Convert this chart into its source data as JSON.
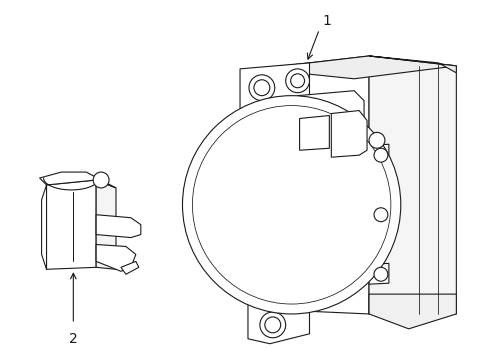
{
  "background_color": "#ffffff",
  "line_color": "#1a1a1a",
  "line_width": 0.8,
  "fig_width": 4.89,
  "fig_height": 3.6,
  "dpi": 100,
  "label_1": "1",
  "label_2": "2"
}
